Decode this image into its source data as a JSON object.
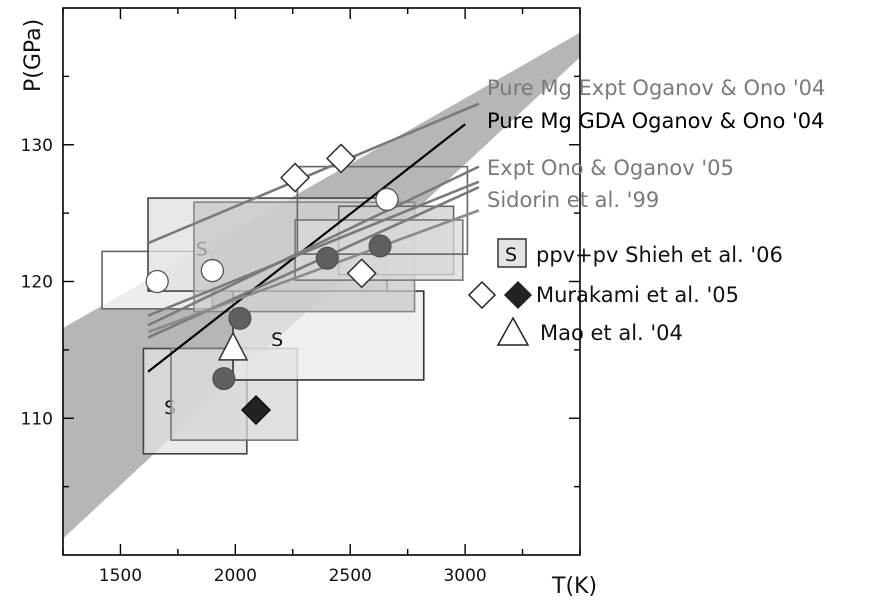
{
  "chart_data": {
    "type": "scatter",
    "xlabel": "T(K)",
    "ylabel": "P(GPa)",
    "xlim": [
      1250,
      3500
    ],
    "ylim": [
      100,
      140
    ],
    "x_ticks": [
      1500,
      2000,
      2500,
      3000
    ],
    "y_ticks": [
      110,
      120,
      130
    ],
    "band": {
      "upper": [
        [
          1250,
          116.6
        ],
        [
          3500,
          138.2
        ]
      ],
      "lower": [
        [
          1250,
          101.2
        ],
        [
          3500,
          136.4
        ]
      ]
    },
    "lines": [
      {
        "name": "Pure Mg Expt Oganov & Ono '04",
        "color": "#7a7a7a",
        "points": [
          [
            1620,
            122.8
          ],
          [
            3060,
            133.0
          ]
        ]
      },
      {
        "name": "Pure Mg GDA Oganov & Ono '04",
        "color": "#000000",
        "points": [
          [
            1620,
            113.4
          ],
          [
            3000,
            131.5
          ]
        ]
      },
      {
        "name": "Expt Ono & Oganov '05",
        "color": "#7a7a7a",
        "points": [
          [
            1620,
            116.8
          ],
          [
            3060,
            128.4
          ]
        ]
      },
      {
        "name": "Sidorin et al. '99",
        "color": "#7a7a7a",
        "points": [
          [
            1620,
            115.9
          ],
          [
            3060,
            126.9
          ]
        ]
      },
      {
        "name": "",
        "color": "#7a7a7a",
        "points": [
          [
            1620,
            117.5
          ],
          [
            3060,
            127.3
          ]
        ]
      },
      {
        "name": "",
        "color": "#8a8a8a",
        "points": [
          [
            1620,
            116.3
          ],
          [
            3060,
            125.2
          ]
        ]
      }
    ],
    "boxes": [
      {
        "x": [
          1420,
          1900
        ],
        "y": [
          118.0,
          122.2
        ],
        "fill": "#ffffff",
        "stroke": "#666666",
        "label": ""
      },
      {
        "x": [
          1600,
          2050
        ],
        "y": [
          107.4,
          115.1
        ],
        "fill": "#e3e3e3",
        "stroke": "#444444",
        "label": "S"
      },
      {
        "x": [
          1720,
          2270
        ],
        "y": [
          108.4,
          115.1
        ],
        "fill": "#d6d6d6",
        "stroke": "#777777",
        "label": ""
      },
      {
        "x": [
          1990,
          2820
        ],
        "y": [
          112.8,
          119.3
        ],
        "fill": "#eaeaea",
        "stroke": "#333333",
        "label": "S"
      },
      {
        "x": [
          1620,
          2660
        ],
        "y": [
          119.3,
          126.1
        ],
        "fill": "#e0e0e0",
        "stroke": "#444444",
        "label": "S"
      },
      {
        "x": [
          1820,
          2780
        ],
        "y": [
          117.8,
          125.8
        ],
        "fill": "#c8c8c8",
        "stroke": "#888888",
        "label": ""
      },
      {
        "x": [
          2450,
          2950
        ],
        "y": [
          120.5,
          125.5
        ],
        "fill": "#cfcfcf",
        "stroke": "#666666",
        "label": ""
      },
      {
        "x": [
          2260,
          2990
        ],
        "y": [
          120.1,
          124.5
        ],
        "fill": "#d9d9d9",
        "stroke": "#777777",
        "label": ""
      },
      {
        "x": [
          2270,
          3010
        ],
        "y": [
          122.0,
          128.4
        ],
        "fill": "none",
        "stroke": "#666666",
        "label": ""
      }
    ],
    "series": [
      {
        "name": "Murakami et al. '05 (open)",
        "marker": "diamond-open",
        "x": [
          2260,
          2460,
          2550
        ],
        "y": [
          127.6,
          129.0,
          120.6
        ]
      },
      {
        "name": "Murakami et al. '05 (filled)",
        "marker": "diamond-filled",
        "x": [
          2090
        ],
        "y": [
          110.6
        ]
      },
      {
        "name": "Mao et al. '04",
        "marker": "triangle-open",
        "x": [
          1990
        ],
        "y": [
          115.0
        ]
      },
      {
        "name": "open circles",
        "marker": "circle-open",
        "x": [
          1660,
          1900,
          2660
        ],
        "y": [
          120.0,
          120.8,
          126.0
        ]
      },
      {
        "name": "gray circles",
        "marker": "circle-gray",
        "x": [
          1950,
          2020,
          2400,
          2630
        ],
        "y": [
          112.9,
          117.3,
          121.7,
          122.6
        ]
      }
    ],
    "annotations": [
      {
        "text": "Pure Mg Expt Oganov & Ono '04",
        "color": "#7a7a7a"
      },
      {
        "text": "Pure Mg GDA Oganov & Ono '04",
        "color": "#000000"
      },
      {
        "text": "Expt Ono & Oganov '05",
        "color": "#7a7a7a"
      },
      {
        "text": "Sidorin et al. '99",
        "color": "#7a7a7a"
      }
    ],
    "legend": [
      {
        "symbol": "S-box",
        "label": "ppv+pv Shieh et al. '06"
      },
      {
        "symbol": "diamond-open-filled",
        "label": "Murakami et al. '05"
      },
      {
        "symbol": "triangle-open",
        "label": "Mao et al. '04"
      }
    ]
  }
}
